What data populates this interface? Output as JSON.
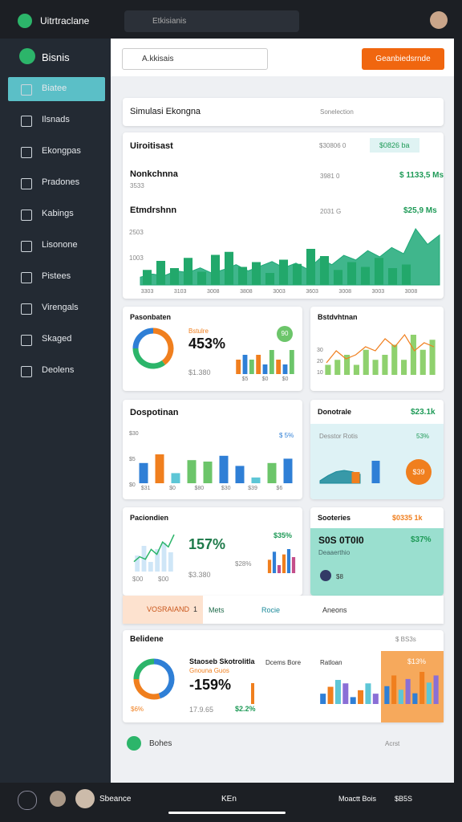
{
  "topbar": {
    "app": "Uitrtraclane",
    "search": "Etkisianis"
  },
  "sidebar": {
    "brand": "Bisnis",
    "items": [
      "Biatee",
      "Ilsnads",
      "Ekongpas",
      "Pradones",
      "Kabings",
      "Lisonone",
      "Pistees",
      "Virengals",
      "Skaged",
      "Deolens"
    ]
  },
  "toolbar": {
    "search": "A.kkisais",
    "button": "Geanbiedsrnde"
  },
  "select": {
    "label": "Simulasi Ekongna",
    "placeholder": "Sonelection"
  },
  "overview": {
    "title": "Uiroitisast",
    "stat1": "$30806 0",
    "stat2": "$0826 ba",
    "rows": [
      {
        "name": "Nonkchnna",
        "sub": "3533",
        "mid": "3981 0",
        "value": "$ 1133,5 Ms"
      },
      {
        "name": "Etmdrshnn",
        "mid": "2031 G",
        "value": "$25,9 Ms"
      }
    ],
    "axis": [
      "2503",
      "1003"
    ],
    "xlabels": [
      "3303",
      "3103",
      "3008",
      "3808",
      "3003",
      "3603",
      "3008",
      "3003",
      "3008"
    ],
    "bars": [
      25,
      40,
      28,
      45,
      22,
      50,
      55,
      30,
      38,
      20,
      42,
      35,
      60,
      48,
      25,
      38,
      30,
      45,
      28,
      34
    ],
    "area": [
      10,
      14,
      12,
      18,
      16,
      22,
      15,
      20,
      26,
      18,
      24,
      30,
      22,
      28,
      20,
      34,
      26,
      38,
      32,
      44,
      36,
      48,
      40,
      72,
      52,
      64
    ],
    "color": "#22a86b"
  },
  "donut_card": {
    "title": "Pasonbaten",
    "label": "Bstulre",
    "value": "453%",
    "sub": "$1.380",
    "badge": "90",
    "donut": [
      40,
      35,
      25
    ],
    "donut_colors": [
      "#f07f1e",
      "#2cb56a",
      "#2f7fd6"
    ],
    "bars": [
      3,
      4,
      3,
      4,
      2,
      5,
      3,
      2,
      5
    ],
    "bar_colors": [
      "#f07f1e",
      "#2f7fd6",
      "#6cc56a"
    ],
    "xlabels": [
      "$5",
      "$0",
      "$0"
    ]
  },
  "combo_card": {
    "title": "Bstdvhtnan",
    "yticks": [
      "30",
      "20",
      "10"
    ],
    "bars": [
      2,
      3,
      4,
      2,
      5,
      3,
      4,
      6,
      3,
      8,
      5,
      7
    ],
    "line": [
      3,
      6,
      4,
      5,
      7,
      6,
      9,
      7,
      10,
      6,
      8,
      7
    ],
    "bar_color": "#8fd16e",
    "line_color": "#f07f1e"
  },
  "bar_card": {
    "title": "Dospotinan",
    "legend": "$ 5%",
    "yticks": [
      "$30",
      "$5",
      "$0"
    ],
    "xlabels": [
      "$31",
      "$0",
      "$80",
      "$30",
      "$39",
      "$6"
    ],
    "bars": [
      14,
      20,
      7,
      16,
      15,
      19,
      12,
      4,
      14,
      17
    ],
    "colors": [
      "#2f7fd6",
      "#f07f1e",
      "#5dc6d6",
      "#6cc56a",
      "#6cc56a",
      "#2f7fd6",
      "#2f7fd6",
      "#5dc6d6",
      "#6cc56a",
      "#2f7fd6"
    ]
  },
  "area_card": {
    "title": "Donotrale",
    "value": "$23.1k",
    "label": "Desstor Rotis",
    "pct": "53%",
    "badge": "$39",
    "area": [
      2,
      6,
      9,
      10,
      9,
      7
    ],
    "bars": [
      8,
      16
    ],
    "colors": [
      "#f07f1e",
      "#2f7fd6"
    ],
    "area_color": "#1b8a9a"
  },
  "line_card": {
    "title": "Paciondien",
    "value": "157%",
    "pct": "$35%",
    "sub": "$3.380",
    "stat": "$28%",
    "axis": [
      "$00",
      "$00"
    ],
    "line": [
      4,
      6,
      5,
      9,
      7,
      12,
      10,
      15
    ],
    "bars": [
      5,
      8,
      3,
      7,
      9,
      6
    ],
    "colors": [
      "#f07f1e",
      "#2f7fd6",
      "#c44f8a"
    ],
    "line_color": "#2cb56a"
  },
  "teal_card": {
    "title": "Sooteries",
    "value": "$0335 1k",
    "big": "S0S 0T0I0",
    "pct": "$37%",
    "sub": "Deaaerthio",
    "tag": "$8"
  },
  "tabs": {
    "first": "VOSRAIAND",
    "count": "1",
    "items": [
      "Mets",
      "Rocie",
      "Aneons"
    ]
  },
  "summary": {
    "title": "Belidene",
    "badge": "$ BS3s",
    "heading": "Staoseb Skotrolitla",
    "sub": "Gnouna Guos",
    "value": "-159%",
    "pct": "$6%",
    "amount": "17.9.65",
    "stat": "$2.2%",
    "col1": "Dcems Bore",
    "col2": "Ratloan",
    "hl": "$13%",
    "donut": [
      45,
      30,
      25
    ],
    "donut_colors": [
      "#2f7fd6",
      "#f07f1e",
      "#2cb56a"
    ],
    "bars": [
      3,
      5,
      7,
      6,
      2,
      4,
      6,
      3
    ],
    "bars2": [
      5,
      8,
      4,
      7,
      3,
      9,
      6,
      8
    ],
    "colors": [
      "#2f7fd6",
      "#f07f1e",
      "#5dc6d6",
      "#8a6fd6"
    ]
  },
  "footer_row": {
    "label": "Bohes",
    "link": "Acrst"
  },
  "bottombar": {
    "user": "Sbeance",
    "center": "KEn",
    "right": "Moactt Bois",
    "code": "$B5S"
  }
}
